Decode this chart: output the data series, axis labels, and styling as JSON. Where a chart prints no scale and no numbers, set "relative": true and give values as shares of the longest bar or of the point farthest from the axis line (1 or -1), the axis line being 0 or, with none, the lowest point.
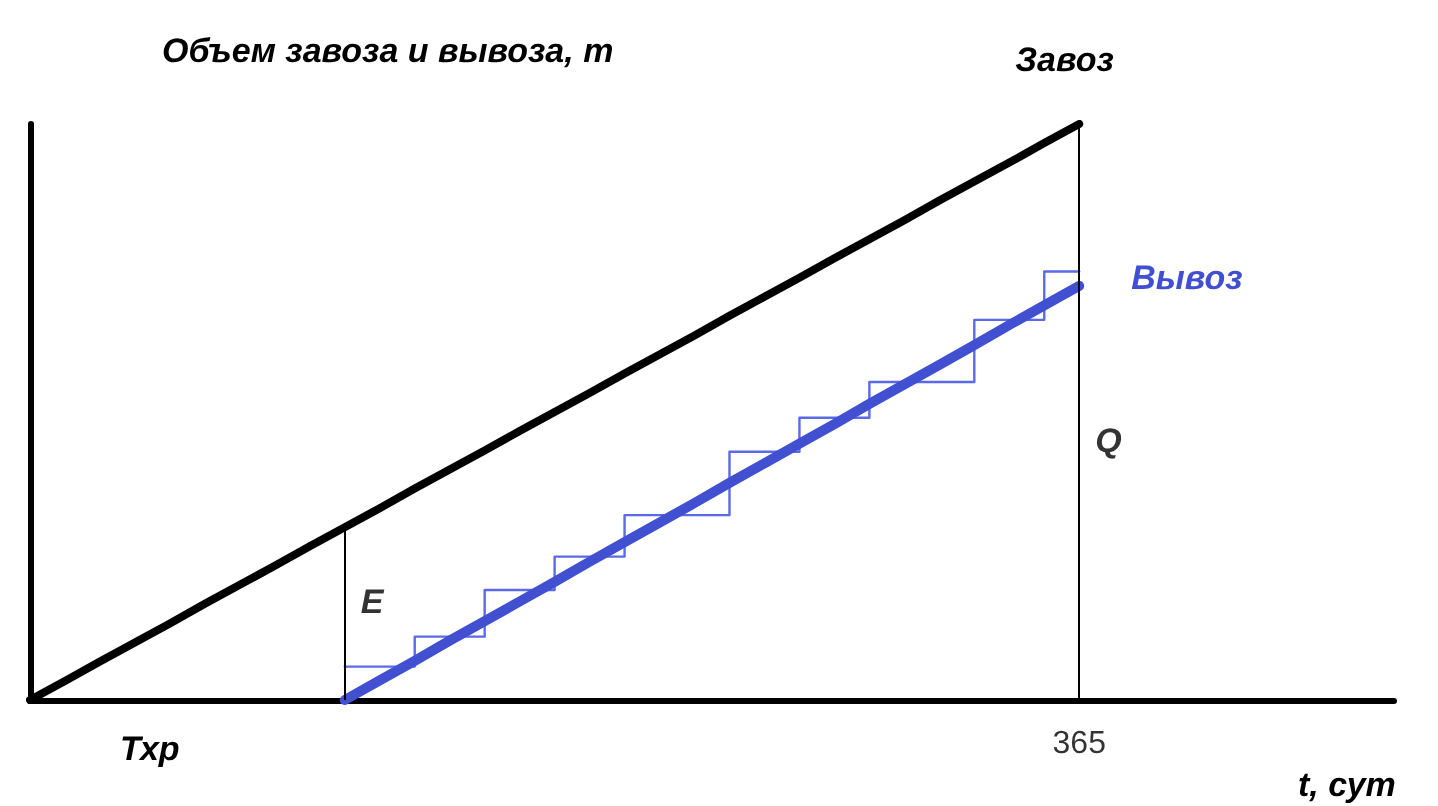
{
  "chart_data": {
    "type": "line",
    "relative": true,
    "ylabel": "Объем завоза и вывоза, т",
    "xlabel": "t, сут",
    "marker": "none",
    "categories": [
      null,
      null,
      null,
      null,
      null,
      null,
      null,
      null,
      null,
      null,
      null,
      null,
      null,
      null,
      null,
      null,
      null,
      null,
      null,
      null,
      null,
      null,
      null,
      null,
      null,
      null,
      null,
      null,
      null,
      null,
      null,
      null,
      null,
      null,
      null,
      null,
      null,
      null,
      null,
      null
    ],
    "series": [
      {
        "name": "Завоз",
        "color": "#000000",
        "values": [
          0,
          0.033,
          0.067,
          0.1,
          0.133,
          0.167,
          0.2,
          0.233,
          0.267,
          0.3,
          0.333,
          0.367,
          0.4,
          0.433,
          0.467,
          0.5,
          0.533,
          0.567,
          0.6,
          0.633,
          0.667,
          0.7,
          0.733,
          0.767,
          0.8,
          0.833,
          0.867,
          0.9,
          0.933,
          0.967,
          1,
          null,
          null,
          null,
          null,
          null,
          null,
          null,
          null,
          null
        ]
      },
      {
        "name": "Вывоз",
        "color": "#4050d0",
        "values": [
          null,
          null,
          null,
          null,
          null,
          null,
          null,
          null,
          null,
          0,
          0.034,
          0.068,
          0.103,
          0.137,
          0.171,
          0.205,
          0.24,
          0.274,
          0.308,
          0.342,
          0.377,
          0.411,
          0.445,
          0.479,
          0.514,
          0.548,
          0.582,
          0.616,
          0.651,
          0.685,
          0.719,
          null,
          null,
          null,
          null,
          null,
          null,
          null,
          null,
          null
        ]
      },
      {
        "type": "step",
        "color": "#5a6ae8",
        "values": [
          null,
          null,
          null,
          null,
          null,
          null,
          null,
          null,
          null,
          0.058,
          0.058,
          0.11,
          0.11,
          0.191,
          0.191,
          0.249,
          0.249,
          0.321,
          0.321,
          0.321,
          0.431,
          0.431,
          0.49,
          0.49,
          0.552,
          0.552,
          0.552,
          0.66,
          0.66,
          0.744,
          0.744,
          null,
          null,
          null,
          null,
          null,
          null,
          null,
          null,
          null
        ]
      }
    ],
    "annotations": [
      "Тхр",
      "E",
      "Q",
      "365"
    ]
  }
}
